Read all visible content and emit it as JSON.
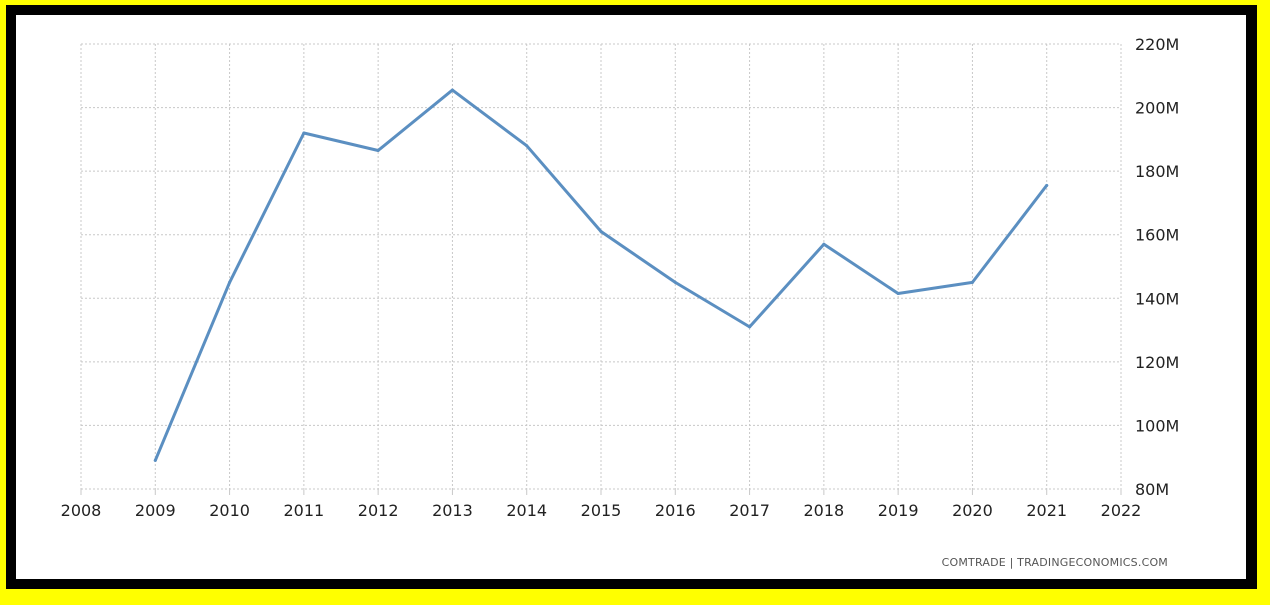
{
  "source_text": "COMTRADE | TRADINGECONOMICS.COM",
  "colors": {
    "border_outer": "#ffff00",
    "border_inner": "#000000",
    "background": "#ffffff",
    "line": "#5b8fc1",
    "grid": "#c8c8c8",
    "text": "#222222"
  },
  "chart_data": {
    "type": "line",
    "title": "",
    "xlabel": "",
    "ylabel": "",
    "x_ticks": [
      "2008",
      "2009",
      "2010",
      "2011",
      "2012",
      "2013",
      "2014",
      "2015",
      "2016",
      "2017",
      "2018",
      "2019",
      "2020",
      "2021",
      "2022"
    ],
    "y_ticks": [
      "80M",
      "100M",
      "120M",
      "140M",
      "160M",
      "180M",
      "200M",
      "220M"
    ],
    "xlim": [
      2008,
      2022
    ],
    "ylim": [
      80,
      220
    ],
    "y_unit": "M",
    "y_axis_position": "right",
    "grid": true,
    "legend": "none",
    "series": [
      {
        "x": [
          2009,
          2010,
          2011,
          2012,
          2013,
          2014,
          2015,
          2016,
          2017,
          2018,
          2019,
          2020,
          2021
        ],
        "values": [
          89,
          145,
          192,
          186.5,
          205.5,
          188,
          161,
          145,
          131,
          157,
          141.5,
          145,
          175.5
        ]
      }
    ]
  }
}
